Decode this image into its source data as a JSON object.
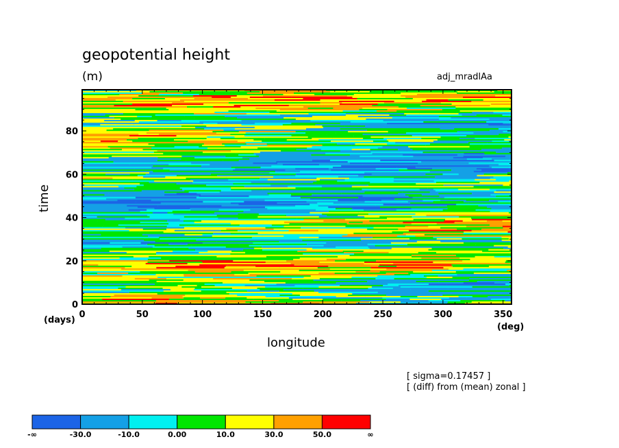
{
  "chart_data": {
    "type": "heatmap",
    "title": "geopotential height",
    "units": "(m)",
    "experiment": "adj_mradlAa",
    "xlabel": "longitude",
    "xunit": "(deg)",
    "ylabel": "time",
    "yunit": "(days)",
    "xlim": [
      0,
      357
    ],
    "ylim": [
      0,
      99
    ],
    "xticks": [
      0,
      50,
      100,
      150,
      200,
      250,
      300,
      350
    ],
    "yticks": [
      0,
      20,
      40,
      60,
      80
    ],
    "notes": [
      "[ sigma=0.17457 ]",
      "[ (diff) from (mean) zonal ]"
    ],
    "colorbar": {
      "colors": [
        "#1c64e6",
        "#14a0e6",
        "#00f0f0",
        "#00e600",
        "#ffff00",
        "#ffa000",
        "#ff0000"
      ],
      "labels": [
        "-∞",
        "-30.0",
        "-10.0",
        "0.00",
        "10.0",
        "30.0",
        "50.0",
        "∞"
      ]
    }
  }
}
